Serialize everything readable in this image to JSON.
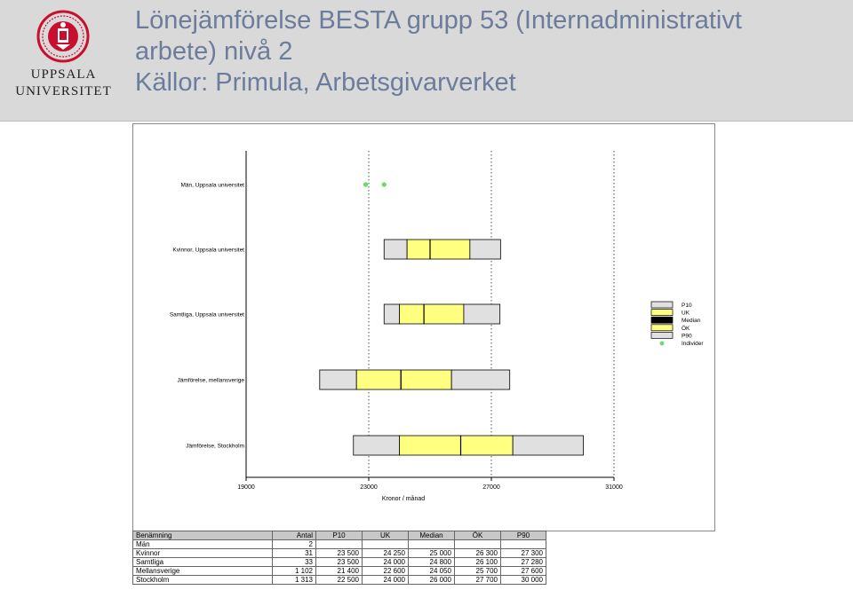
{
  "header": {
    "logo_line1": "UPPSALA",
    "logo_line2": "UNIVERSITET",
    "title_lines": [
      "Lönejämförelse BESTA grupp 53 (Internadministrativt",
      "arbete) nivå 2",
      "Källor: Primula, Arbetsgivarverket"
    ],
    "brand_color": "#c8102e",
    "title_color": "#6b7d9b"
  },
  "chart_data": {
    "type": "box",
    "xlabel": "Kronor / månad",
    "xlim": [
      19000,
      31000
    ],
    "x_ticks": [
      19000,
      23000,
      27000,
      31000
    ],
    "x_tick_labels": [
      "19000",
      "23000",
      "27000",
      "31000"
    ],
    "grid": "dotted vertical",
    "legend_position": "right",
    "legend": [
      {
        "label": "P10",
        "color": "#e0e0e0"
      },
      {
        "label": "UK",
        "color": "#ffff80"
      },
      {
        "label": "Median",
        "color": "#000000"
      },
      {
        "label": "ÖK",
        "color": "#ffff80"
      },
      {
        "label": "P90",
        "color": "#e0e0e0"
      },
      {
        "label": "Individer",
        "color": "#66dd66"
      }
    ],
    "rows": [
      {
        "label": "Män, Uppsala universitet",
        "type": "points",
        "points": [
          22900,
          23500
        ]
      },
      {
        "label": "Kvinnor, Uppsala universitet",
        "p10": 23500,
        "uk": 24250,
        "median": 25000,
        "ok": 26300,
        "p90": 27300
      },
      {
        "label": "Samtliga, Uppsala universitet",
        "p10": 23500,
        "uk": 24000,
        "median": 24800,
        "ok": 26100,
        "p90": 27280
      },
      {
        "label": "Jämförelse, mellansverige",
        "p10": 21400,
        "uk": 22600,
        "median": 24050,
        "ok": 25700,
        "p90": 27600
      },
      {
        "label": "Jämförelse, Stockholm",
        "p10": 22500,
        "uk": 24000,
        "median": 26000,
        "ok": 27700,
        "p90": 30000
      }
    ]
  },
  "table": {
    "headers": [
      "Benämning",
      "Antal",
      "P10",
      "UK",
      "Median",
      "ÖK",
      "P90"
    ],
    "rows": [
      [
        "Män",
        "2",
        "",
        "",
        "",
        "",
        ""
      ],
      [
        "Kvinnor",
        "31",
        "23 500",
        "24 250",
        "25 000",
        "26 300",
        "27 300"
      ],
      [
        "Samtliga",
        "33",
        "23 500",
        "24 000",
        "24 800",
        "26 100",
        "27 280"
      ],
      [
        "Mellansverige",
        "1 102",
        "21 400",
        "22 600",
        "24 050",
        "25 700",
        "27 600"
      ],
      [
        "Stockholm",
        "1 313",
        "22 500",
        "24 000",
        "26 000",
        "27 700",
        "30 000"
      ]
    ]
  }
}
